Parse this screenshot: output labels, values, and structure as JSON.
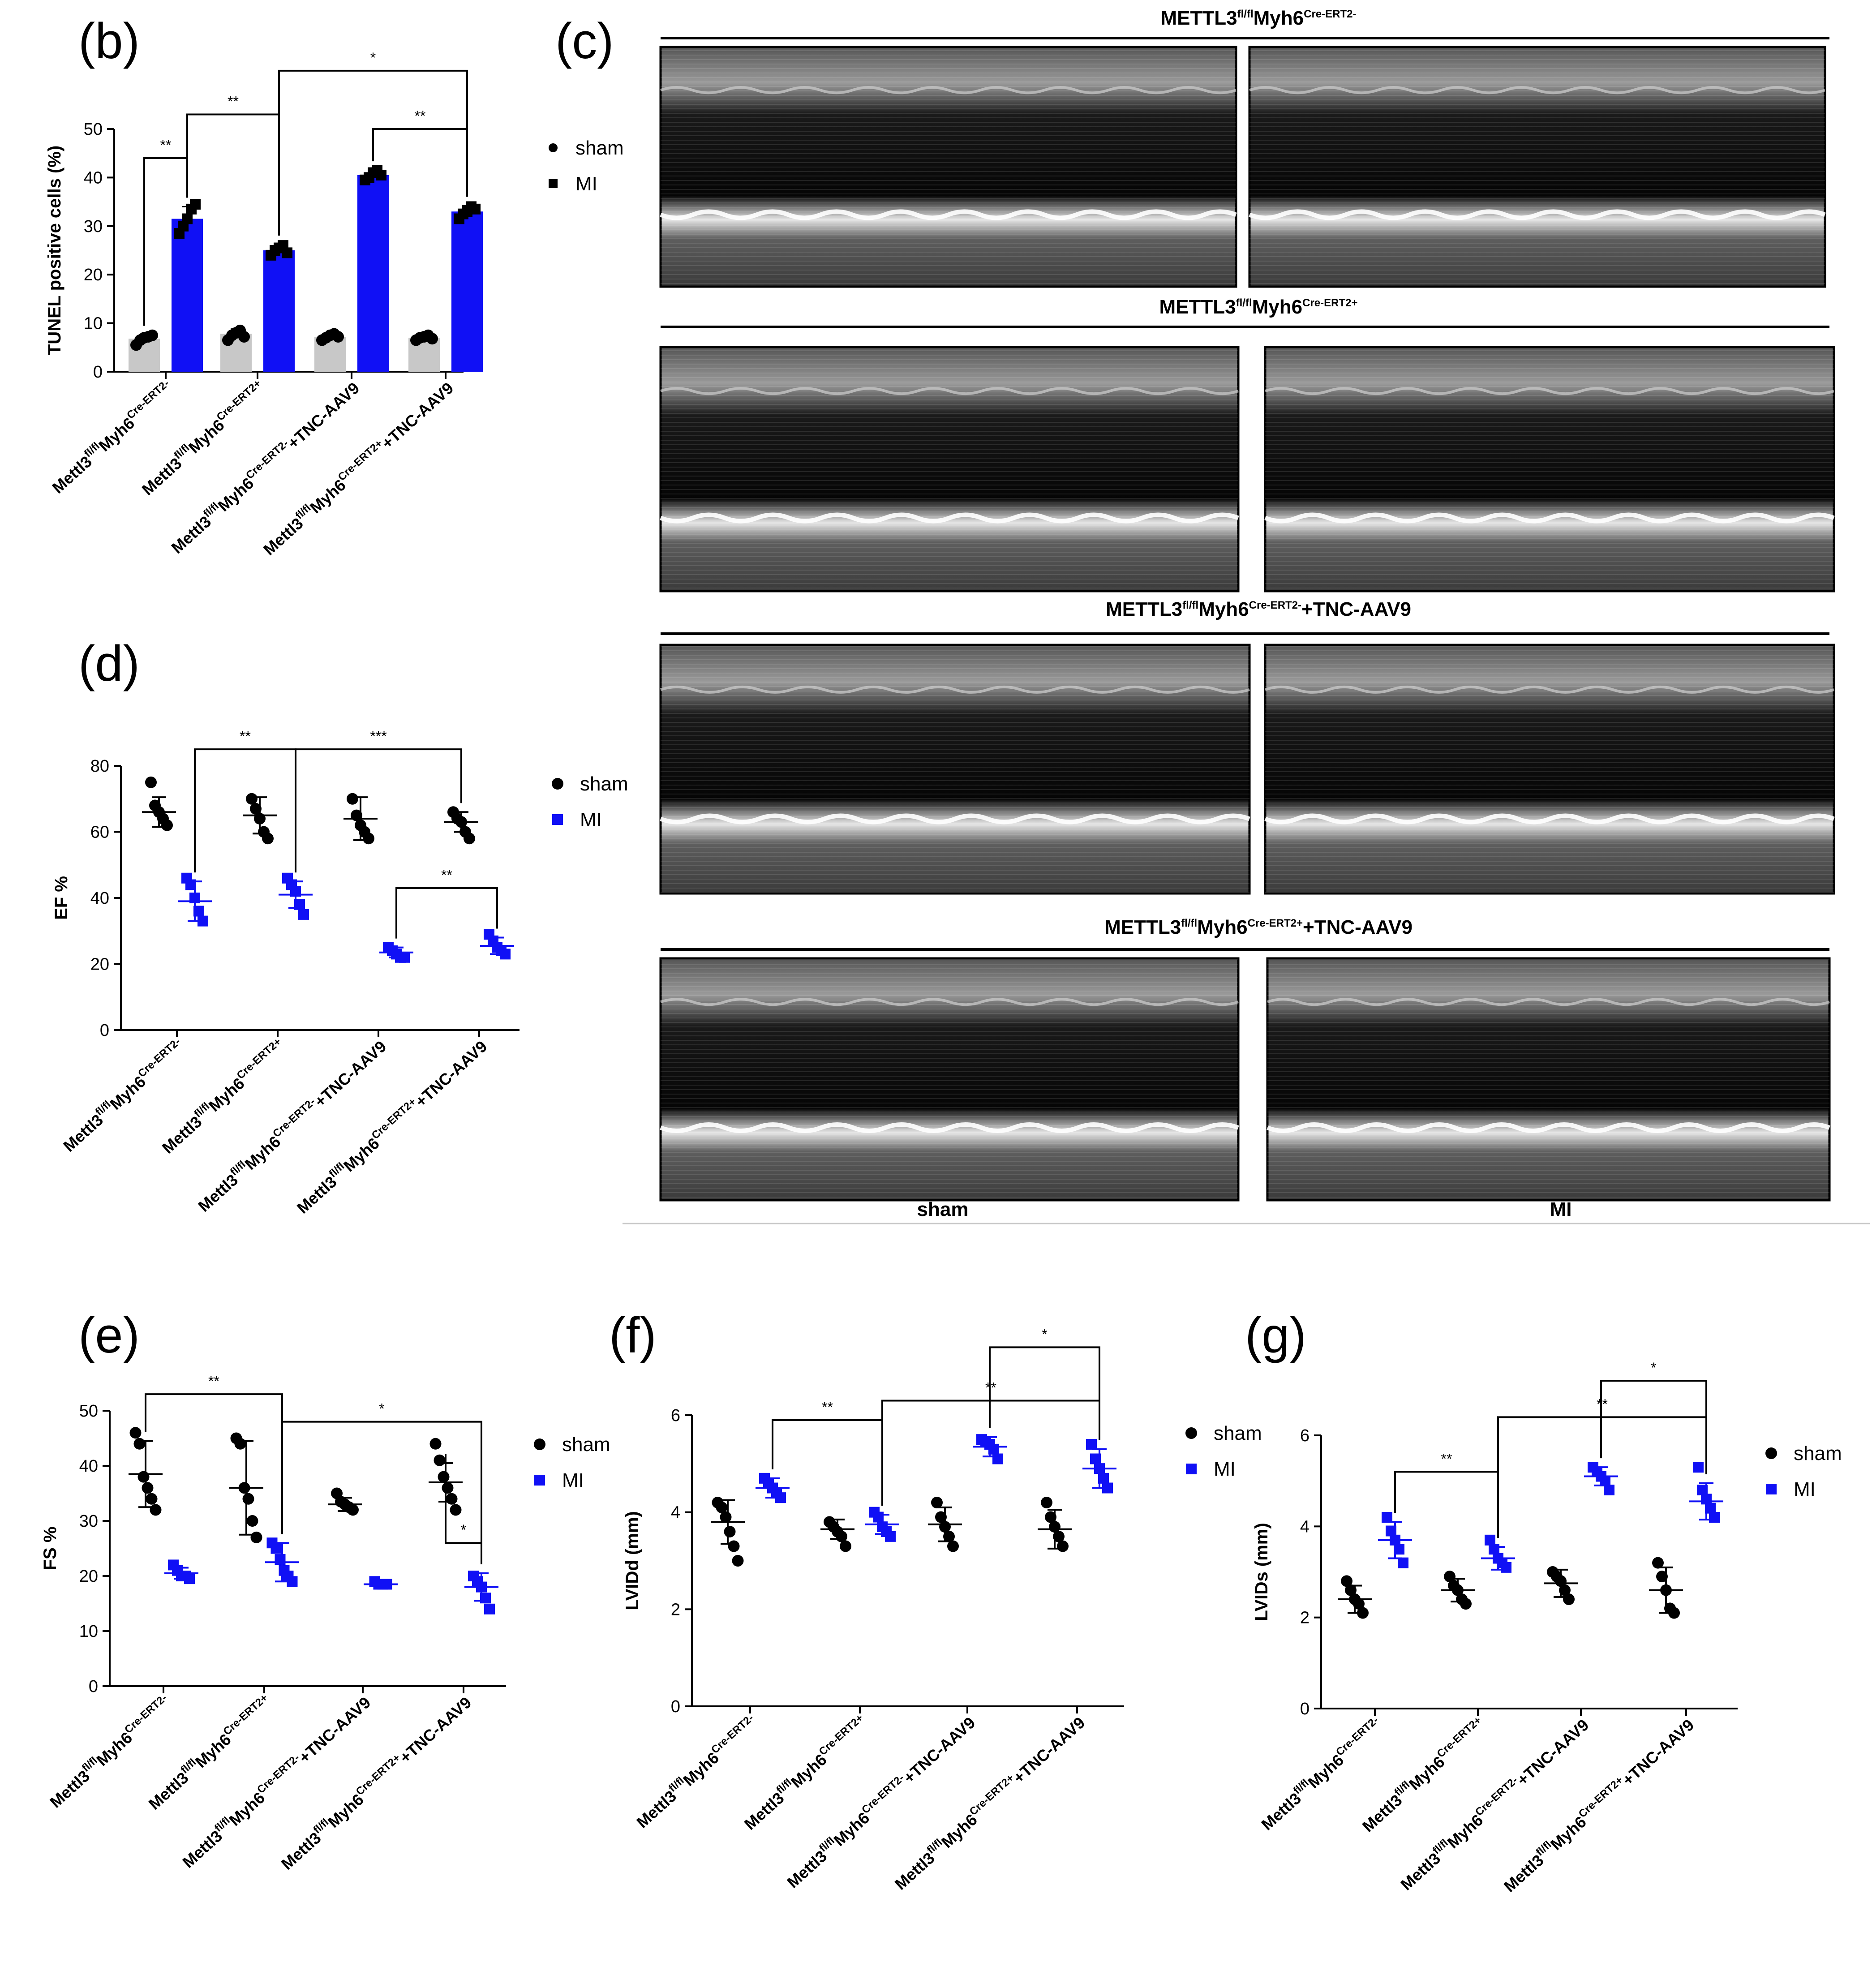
{
  "colors": {
    "sham": "#000000",
    "mi": "#1010f5",
    "sham_bar": "#c8c8c8",
    "mi_bar": "#1010f5"
  },
  "categories": [
    {
      "pre": "Mettl3",
      "sup1": "fl/fl",
      "mid": "Myh6",
      "sup2": "Cre-ERT2-",
      "post": ""
    },
    {
      "pre": "Mettl3",
      "sup1": "fl/fl",
      "mid": "Myh6",
      "sup2": "Cre-ERT2+",
      "post": ""
    },
    {
      "pre": "Mettl3",
      "sup1": "fl/fl",
      "mid": "Myh6",
      "sup2": "Cre-ERT2-",
      "post": "+TNC-AAV9"
    },
    {
      "pre": "Mettl3",
      "sup1": "fl/fl",
      "mid": "Myh6",
      "sup2": "Cre-ERT2+",
      "post": "+TNC-AAV9"
    }
  ],
  "legend": {
    "sham": "sham",
    "mi": "MI"
  },
  "echo": {
    "panel_label": "(c)",
    "rows": [
      {
        "pre": "METTL3",
        "sup1": "fl/fl",
        "mid": "Myh6",
        "sup2": "Cre-ERT2-",
        "post": ""
      },
      {
        "pre": "METTL3",
        "sup1": "fl/fl",
        "mid": "Myh6",
        "sup2": "Cre-ERT2+",
        "post": ""
      },
      {
        "pre": "METTL3",
        "sup1": "fl/fl",
        "mid": "Myh6",
        "sup2": "Cre-ERT2-",
        "post": "+TNC-AAV9"
      },
      {
        "pre": "METTL3",
        "sup1": "fl/fl",
        "mid": "Myh6",
        "sup2": "Cre-ERT2+",
        "post": "+TNC-AAV9"
      }
    ],
    "footer": [
      "sham",
      "MI"
    ]
  },
  "chart_data": [
    {
      "panel": "(b)",
      "type": "bar",
      "ylabel": "TUNEL positive cells (%)",
      "ylim": [
        0,
        50
      ],
      "yticks": [
        0,
        10,
        20,
        30,
        40,
        50
      ],
      "series": [
        {
          "name": "sham",
          "mean": [
            6.8,
            7.8,
            7.2,
            7.0
          ],
          "sd": [
            0.8,
            1.0,
            0.6,
            0.6
          ],
          "points": [
            [
              5.5,
              6.5,
              7.0,
              7.2,
              7.5
            ],
            [
              6.5,
              7.5,
              8.0,
              8.5,
              7.2
            ],
            [
              6.5,
              7.0,
              7.5,
              7.8,
              7.2
            ],
            [
              6.5,
              7.0,
              7.2,
              7.5,
              6.8
            ]
          ]
        },
        {
          "name": "MI",
          "mean": [
            31.5,
            25.0,
            40.5,
            33.0
          ],
          "sd": [
            2.5,
            1.2,
            1.0,
            1.2
          ],
          "points": [
            [
              28.5,
              30.0,
              31.5,
              33.5,
              34.5
            ],
            [
              24.0,
              25.0,
              25.5,
              26.0,
              24.5
            ],
            [
              39.5,
              40.0,
              41.0,
              41.5,
              40.5
            ],
            [
              31.5,
              32.5,
              33.0,
              34.0,
              33.5
            ]
          ]
        }
      ],
      "significance": [
        {
          "from": [
            "MI",
            0
          ],
          "to": [
            "sham",
            0
          ],
          "label": "**",
          "y": 44
        },
        {
          "from": [
            "MI",
            0
          ],
          "to": [
            "MI",
            1
          ],
          "label": "**",
          "y": 53
        },
        {
          "from": [
            "MI",
            1
          ],
          "to": [
            "MI",
            3
          ],
          "label": "*",
          "y": 62
        },
        {
          "from": [
            "MI",
            2
          ],
          "to": [
            "MI",
            3
          ],
          "label": "**",
          "y": 50
        }
      ]
    },
    {
      "panel": "(d)",
      "type": "scatter",
      "ylabel": "EF %",
      "ylim": [
        0,
        80
      ],
      "yticks": [
        0,
        20,
        40,
        60,
        80
      ],
      "series": [
        {
          "name": "sham",
          "mean": [
            66,
            65,
            64,
            63
          ],
          "sd": [
            4.5,
            5.5,
            6.5,
            3.0
          ],
          "points": [
            [
              75,
              68,
              66,
              64,
              62
            ],
            [
              70,
              67,
              64,
              60,
              58
            ],
            [
              70,
              65,
              62,
              60,
              58
            ],
            [
              66,
              64,
              63,
              60,
              58
            ]
          ]
        },
        {
          "name": "MI",
          "mean": [
            39,
            41,
            23.5,
            25.5
          ],
          "sd": [
            6.0,
            4.0,
            1.5,
            2.5
          ],
          "points": [
            [
              46,
              44,
              40,
              36,
              33
            ],
            [
              46,
              44,
              42,
              38,
              35
            ],
            [
              25,
              24,
              23,
              22,
              22
            ],
            [
              29,
              27,
              25,
              24,
              23
            ]
          ]
        }
      ],
      "significance": [
        {
          "from": [
            "MI",
            0
          ],
          "to": [
            "MI",
            1
          ],
          "label": "**",
          "y": 85
        },
        {
          "from": [
            "MI",
            1
          ],
          "to": [
            "sham",
            3
          ],
          "label": "***",
          "y": 85
        },
        {
          "from": [
            "MI",
            2
          ],
          "to": [
            "MI",
            3
          ],
          "label": "**",
          "y": 43
        }
      ]
    },
    {
      "panel": "(e)",
      "type": "scatter",
      "ylabel": "FS %",
      "ylim": [
        0,
        50
      ],
      "yticks": [
        0,
        10,
        20,
        30,
        40,
        50
      ],
      "series": [
        {
          "name": "sham",
          "mean": [
            38.5,
            36,
            33,
            37
          ],
          "sd": [
            6.0,
            8.5,
            1.2,
            3.5
          ],
          "points": [
            [
              46,
              44,
              38,
              36,
              34,
              32
            ],
            [
              45,
              44,
              36,
              34,
              30,
              27
            ],
            [
              35,
              33.5,
              33,
              32.5,
              32
            ],
            [
              44,
              41,
              38,
              36,
              34,
              32
            ]
          ]
        },
        {
          "name": "MI",
          "mean": [
            20.5,
            22.5,
            18.5,
            18
          ],
          "sd": [
            1.0,
            3.5,
            0.5,
            2.5
          ],
          "points": [
            [
              22,
              21,
              20,
              20,
              19.5
            ],
            [
              26,
              25,
              23,
              21,
              20,
              19
            ],
            [
              19,
              18.5,
              18.5,
              18.5
            ],
            [
              20,
              19,
              18,
              16,
              14
            ]
          ]
        }
      ],
      "significance": [
        {
          "from": [
            "sham",
            0
          ],
          "to": [
            "MI",
            1
          ],
          "label": "**",
          "y": 53
        },
        {
          "from": [
            "MI",
            1
          ],
          "to": [
            "MI",
            3
          ],
          "label": "*",
          "y": 48
        },
        {
          "from": [
            "sham",
            3
          ],
          "to": [
            "MI",
            3
          ],
          "label": "*",
          "y": 26
        }
      ]
    },
    {
      "panel": "(f)",
      "type": "scatter",
      "ylabel": "LVIDd (mm)",
      "ylim": [
        0,
        6
      ],
      "yticks": [
        0,
        2,
        4,
        6
      ],
      "series": [
        {
          "name": "sham",
          "mean": [
            3.8,
            3.65,
            3.75,
            3.65
          ],
          "sd": [
            0.45,
            0.2,
            0.35,
            0.4
          ],
          "points": [
            [
              4.2,
              4.1,
              3.9,
              3.6,
              3.3,
              3.0
            ],
            [
              3.8,
              3.7,
              3.6,
              3.5,
              3.3
            ],
            [
              4.2,
              3.9,
              3.7,
              3.5,
              3.3
            ],
            [
              4.2,
              3.9,
              3.7,
              3.5,
              3.3
            ]
          ]
        },
        {
          "name": "MI",
          "mean": [
            4.5,
            3.75,
            5.35,
            4.9
          ],
          "sd": [
            0.2,
            0.2,
            0.2,
            0.4
          ],
          "points": [
            [
              4.7,
              4.6,
              4.5,
              4.4,
              4.3
            ],
            [
              4.0,
              3.9,
              3.7,
              3.6,
              3.5
            ],
            [
              5.5,
              5.45,
              5.4,
              5.3,
              5.1
            ],
            [
              5.4,
              5.1,
              4.9,
              4.7,
              4.5
            ]
          ]
        }
      ],
      "significance": [
        {
          "from": [
            "MI",
            0
          ],
          "to": [
            "MI",
            1
          ],
          "label": "**",
          "y": 5.9
        },
        {
          "from": [
            "MI",
            1
          ],
          "to": [
            "MI",
            3
          ],
          "label": "**",
          "y": 6.3
        },
        {
          "from": [
            "MI",
            2
          ],
          "to": [
            "MI",
            3
          ],
          "label": "*",
          "y": 7.4
        }
      ]
    },
    {
      "panel": "(g)",
      "type": "scatter",
      "ylabel": "LVIDs (mm)",
      "ylim": [
        0,
        6
      ],
      "yticks": [
        0,
        2,
        4,
        6
      ],
      "series": [
        {
          "name": "sham",
          "mean": [
            2.4,
            2.6,
            2.75,
            2.6
          ],
          "sd": [
            0.3,
            0.25,
            0.3,
            0.5
          ],
          "points": [
            [
              2.8,
              2.6,
              2.4,
              2.3,
              2.1
            ],
            [
              2.9,
              2.7,
              2.6,
              2.4,
              2.3
            ],
            [
              3.0,
              2.9,
              2.8,
              2.6,
              2.4
            ],
            [
              3.2,
              2.9,
              2.6,
              2.2,
              2.1
            ]
          ]
        },
        {
          "name": "MI",
          "mean": [
            3.7,
            3.3,
            5.1,
            4.55
          ],
          "sd": [
            0.4,
            0.25,
            0.2,
            0.4
          ],
          "points": [
            [
              4.2,
              3.9,
              3.7,
              3.5,
              3.2
            ],
            [
              3.7,
              3.5,
              3.3,
              3.2,
              3.1
            ],
            [
              5.3,
              5.2,
              5.1,
              5.0,
              4.8
            ],
            [
              5.3,
              4.8,
              4.6,
              4.4,
              4.2
            ]
          ]
        }
      ],
      "significance": [
        {
          "from": [
            "MI",
            0
          ],
          "to": [
            "MI",
            1
          ],
          "label": "**",
          "y": 5.2
        },
        {
          "from": [
            "MI",
            1
          ],
          "to": [
            "MI",
            3
          ],
          "label": "**",
          "y": 6.4
        },
        {
          "from": [
            "MI",
            2
          ],
          "to": [
            "MI",
            3
          ],
          "label": "*",
          "y": 7.2
        }
      ]
    }
  ]
}
